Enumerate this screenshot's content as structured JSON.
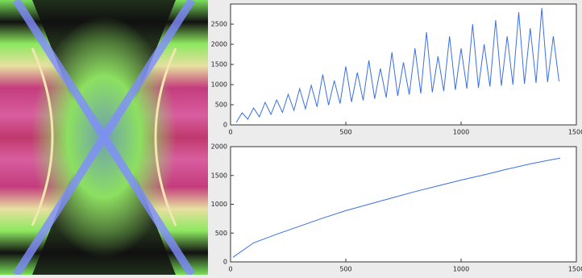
{
  "chart_data": [
    {
      "type": "line",
      "x": [
        25,
        50,
        75,
        100,
        125,
        150,
        175,
        200,
        225,
        250,
        275,
        300,
        325,
        350,
        375,
        400,
        425,
        450,
        475,
        500,
        525,
        550,
        575,
        600,
        625,
        650,
        675,
        700,
        725,
        750,
        775,
        800,
        825,
        850,
        875,
        900,
        925,
        950,
        975,
        1000,
        1025,
        1050,
        1075,
        1100,
        1125,
        1150,
        1175,
        1200,
        1225,
        1250,
        1275,
        1300,
        1325,
        1350,
        1375,
        1400,
        1425
      ],
      "series": [
        {
          "color": "#3a6fe6",
          "values": [
            60,
            300,
            140,
            420,
            200,
            560,
            260,
            620,
            310,
            760,
            360,
            900,
            400,
            980,
            450,
            1250,
            490,
            1100,
            530,
            1450,
            570,
            1300,
            610,
            1600,
            650,
            1400,
            680,
            1800,
            720,
            1550,
            750,
            1900,
            780,
            2300,
            810,
            1700,
            840,
            2200,
            870,
            1900,
            900,
            2500,
            920,
            2000,
            950,
            2600,
            970,
            2200,
            1000,
            2800,
            1020,
            2400,
            1040,
            2900,
            1060,
            2200,
            1080
          ]
        }
      ],
      "xlim": [
        0,
        1500
      ],
      "xticks": [
        0,
        500,
        1000,
        1500
      ],
      "ylim": [
        0,
        3000
      ],
      "yticks": [
        0,
        500,
        1000,
        1500,
        2000,
        2500
      ]
    },
    {
      "type": "line",
      "x": [
        10,
        100,
        200,
        300,
        400,
        500,
        600,
        700,
        800,
        900,
        1000,
        1100,
        1200,
        1300,
        1400,
        1430
      ],
      "series": [
        {
          "color": "#3a6fe6",
          "values": [
            80,
            330,
            480,
            620,
            760,
            890,
            1000,
            1110,
            1220,
            1320,
            1420,
            1510,
            1610,
            1700,
            1780,
            1800
          ]
        }
      ],
      "xlim": [
        0,
        1500
      ],
      "xticks": [
        0,
        500,
        1000,
        1500
      ],
      "ylim": [
        0,
        2000
      ],
      "yticks": [
        0,
        500,
        1000,
        1500,
        2000
      ]
    }
  ]
}
